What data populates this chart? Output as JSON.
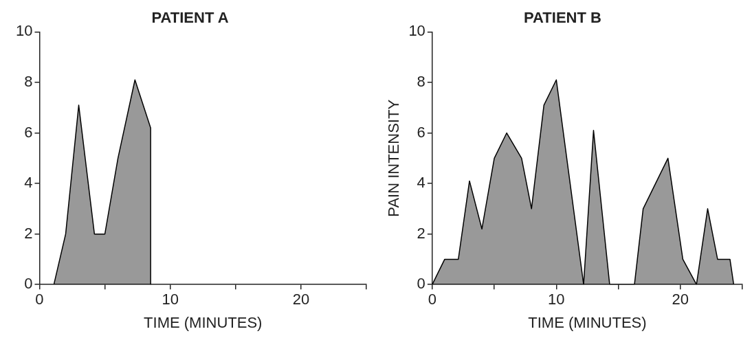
{
  "chart_data": [
    {
      "type": "area",
      "title": "PATIENT A",
      "xlabel": "TIME (MINUTES)",
      "series": [
        {
          "color": "#000000",
          "x": [
            1.1,
            2,
            3,
            4.2,
            5,
            6,
            7.3,
            8.5,
            8.5
          ],
          "values": [
            0,
            2,
            7.1,
            2,
            2,
            5,
            8.1,
            6.2,
            0
          ]
        }
      ],
      "xlim": [
        0,
        25
      ],
      "xticks": [
        0,
        {
          "value": 5,
          "label": null
        },
        10,
        {
          "value": 15,
          "label": null
        },
        20,
        {
          "value": 25,
          "label": null
        }
      ],
      "ylim": [
        0,
        10
      ],
      "yticks": [
        0,
        2,
        4,
        6,
        8,
        10
      ],
      "grid": false,
      "legend": false
    },
    {
      "type": "area",
      "title": "PATIENT B",
      "xlabel": "TIME (MINUTES)",
      "ylabel": "PAIN INTENSITY",
      "series": [
        {
          "color": "#000000",
          "x": [
            0,
            1,
            2.1,
            3,
            4,
            5,
            6,
            7.2,
            8,
            9,
            10,
            12.2,
            13,
            14.3,
            16.3,
            17,
            18,
            19,
            20.2,
            21.3,
            22.2,
            23,
            24,
            24.3
          ],
          "values": [
            0,
            1,
            1,
            4.1,
            2.2,
            5,
            6,
            5,
            3,
            7.1,
            8.1,
            0,
            6.1,
            0,
            0,
            3,
            4,
            5,
            1,
            0,
            3,
            1,
            1,
            0
          ]
        }
      ],
      "xlim": [
        0,
        25
      ],
      "xticks": [
        0,
        {
          "value": 5,
          "label": null
        },
        10,
        {
          "value": 15,
          "label": null
        },
        20,
        {
          "value": 25,
          "label": null
        }
      ],
      "ylim": [
        0,
        10
      ],
      "yticks": [
        0,
        2,
        4,
        6,
        8,
        10
      ],
      "grid": false,
      "legend": false
    }
  ]
}
